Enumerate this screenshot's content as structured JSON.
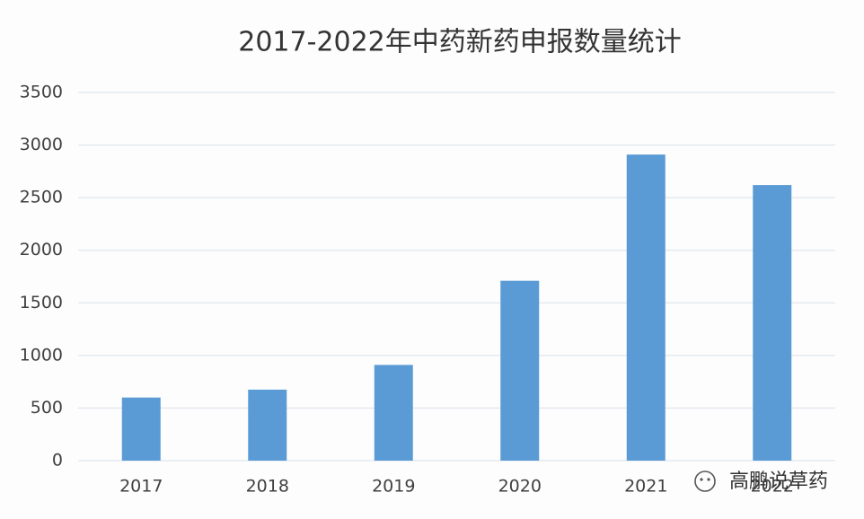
{
  "chart_data": {
    "type": "bar",
    "title": "2017-2022年中药新药申报数量统计",
    "categories": [
      "2017",
      "2018",
      "2019",
      "2020",
      "2021",
      "2022"
    ],
    "values": [
      600,
      675,
      910,
      1710,
      2910,
      2620
    ],
    "color": "#5b9bd5",
    "ylim": [
      0,
      3500
    ],
    "yticks": [
      0,
      500,
      1000,
      1500,
      2000,
      2500,
      3000,
      3500
    ],
    "grid": true,
    "annotation": "高鹏说草药"
  }
}
